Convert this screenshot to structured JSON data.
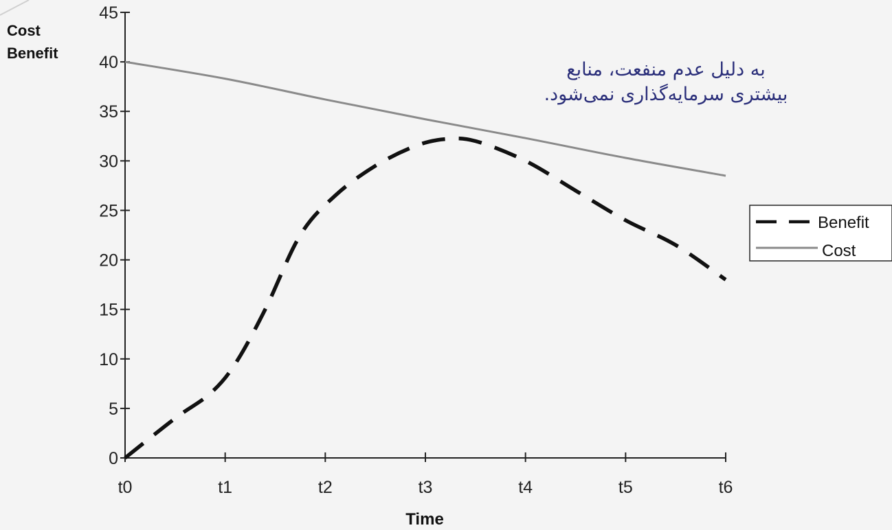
{
  "chart_data": {
    "type": "line",
    "xlabel": "Time",
    "ylabel": [
      "Cost",
      "Benefit"
    ],
    "categories": [
      "t0",
      "t1",
      "t2",
      "t3",
      "t4",
      "t5",
      "t6"
    ],
    "ylim": [
      0,
      45
    ],
    "yticks": [
      0,
      5,
      10,
      15,
      20,
      25,
      30,
      35,
      40,
      45
    ],
    "grid": false,
    "legend_position": "right",
    "series": [
      {
        "name": "Benefit",
        "style": "dashed",
        "color": "#111111",
        "points": [
          [
            0,
            0
          ],
          [
            0.5,
            4
          ],
          [
            0.85,
            6.5
          ],
          [
            1.1,
            9.5
          ],
          [
            1.4,
            15
          ],
          [
            1.75,
            22.5
          ],
          [
            2.1,
            26.5
          ],
          [
            2.5,
            29.5
          ],
          [
            2.9,
            31.5
          ],
          [
            3.2,
            32.2
          ],
          [
            3.5,
            32
          ],
          [
            4.0,
            30
          ],
          [
            4.5,
            27
          ],
          [
            5.0,
            24
          ],
          [
            5.5,
            21.5
          ],
          [
            6.0,
            18
          ]
        ]
      },
      {
        "name": "Cost",
        "style": "solid",
        "color": "#8a8a8a",
        "points": [
          [
            0,
            40
          ],
          [
            1,
            38.3
          ],
          [
            2,
            36.2
          ],
          [
            3,
            34.2
          ],
          [
            4,
            32.3
          ],
          [
            5,
            30.3
          ],
          [
            6,
            28.5
          ]
        ]
      }
    ],
    "annotation": [
      "به دلیل عدم منفعت، منابع",
      "بیشتری سرمایه‌گذاری نمی‌شود."
    ]
  }
}
